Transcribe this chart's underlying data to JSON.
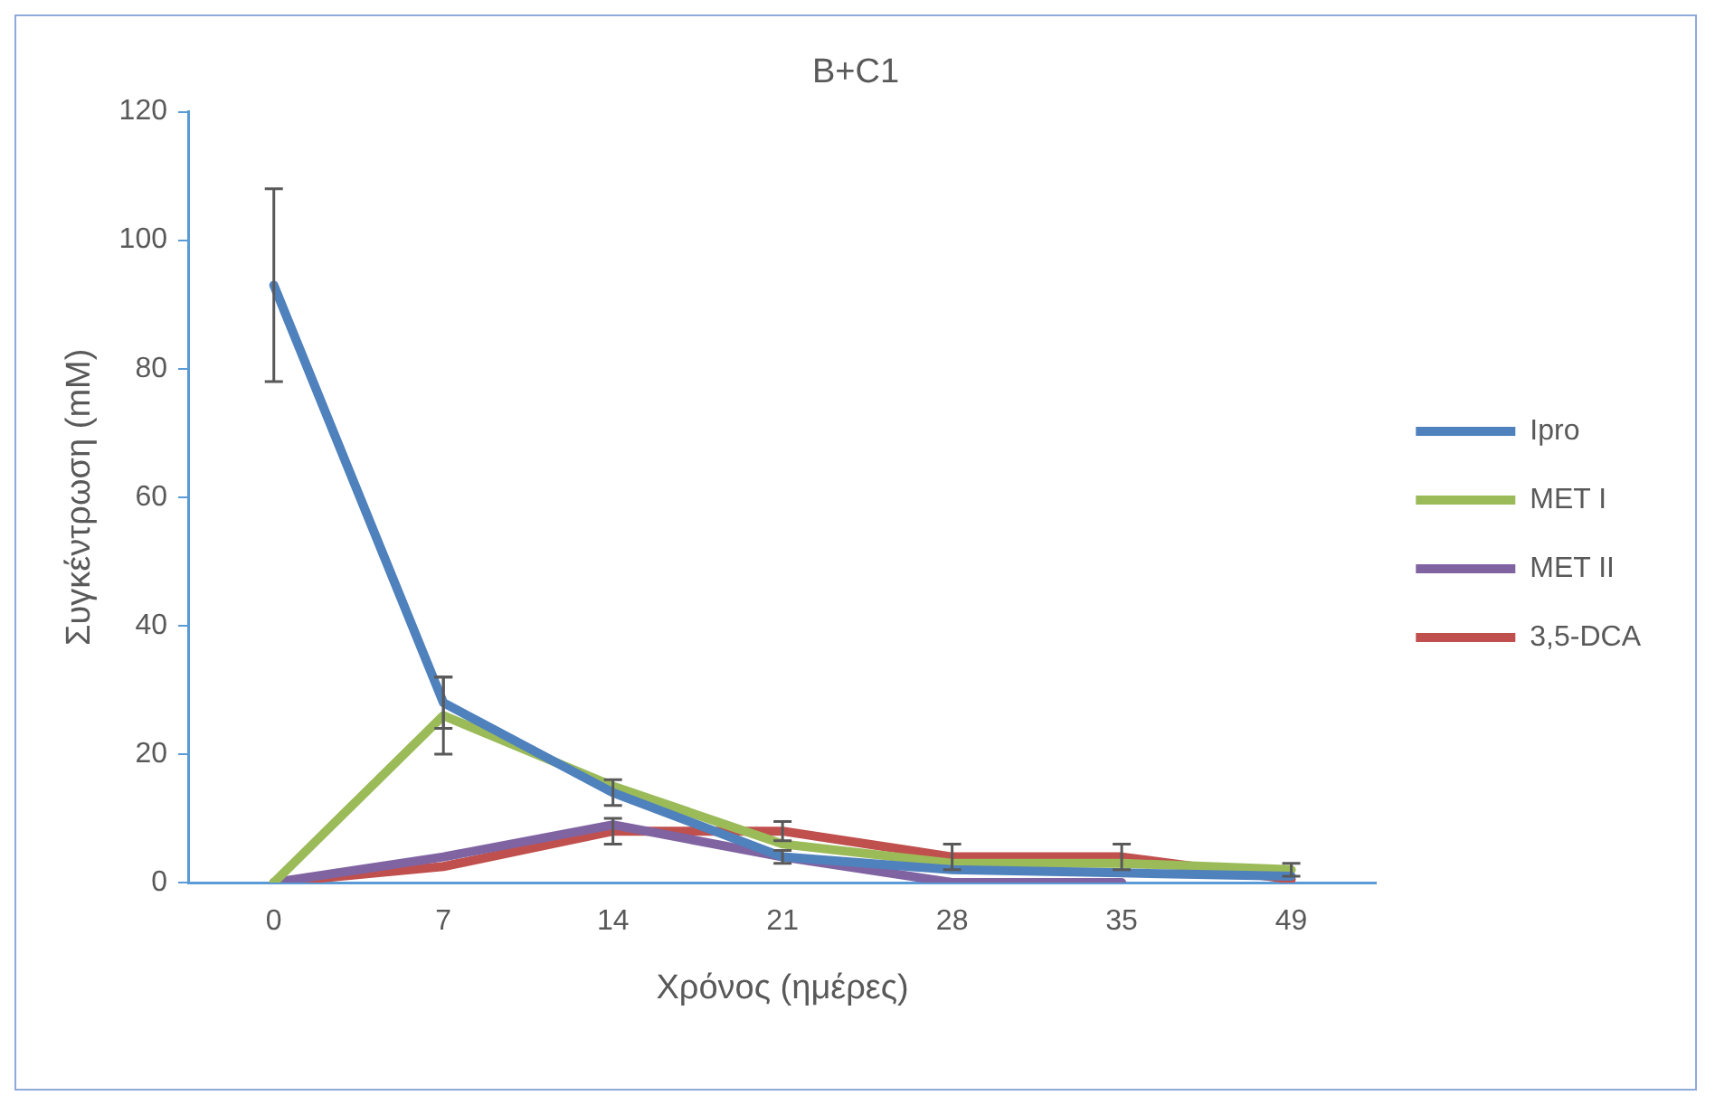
{
  "chart_data": {
    "type": "line",
    "title": "B+C1",
    "xlabel": "Χρόνος (ημέρες)",
    "ylabel": "Συγκέντρωση (mM)",
    "categories": [
      "0",
      "7",
      "14",
      "21",
      "28",
      "35",
      "49"
    ],
    "ylim": [
      0,
      120
    ],
    "yticks": [
      0,
      20,
      40,
      60,
      80,
      100,
      120
    ],
    "grid": false,
    "legend": "right",
    "line_style": "solid",
    "series": [
      {
        "name": "Ipro",
        "color": "#4f81bd",
        "values": [
          93,
          28,
          14,
          4,
          2,
          1.5,
          1
        ],
        "errors": [
          15,
          4,
          2,
          null,
          null,
          null,
          null
        ]
      },
      {
        "name": "MET I",
        "color": "#9bbb59",
        "values": [
          0,
          26,
          15,
          6,
          3,
          3,
          2
        ],
        "errors": [
          null,
          6,
          null,
          null,
          null,
          null,
          1
        ]
      },
      {
        "name": "MET II",
        "color": "#8064a2",
        "values": [
          0,
          4,
          9,
          4,
          0,
          0,
          null
        ],
        "errors": [
          null,
          null,
          null,
          1,
          null,
          null,
          null
        ]
      },
      {
        "name": "3,5-DCA",
        "color": "#c0504d",
        "values": [
          0,
          2.5,
          8,
          8,
          4,
          4,
          0.5
        ],
        "errors": [
          null,
          null,
          2,
          1.5,
          2,
          2,
          null
        ]
      }
    ]
  }
}
